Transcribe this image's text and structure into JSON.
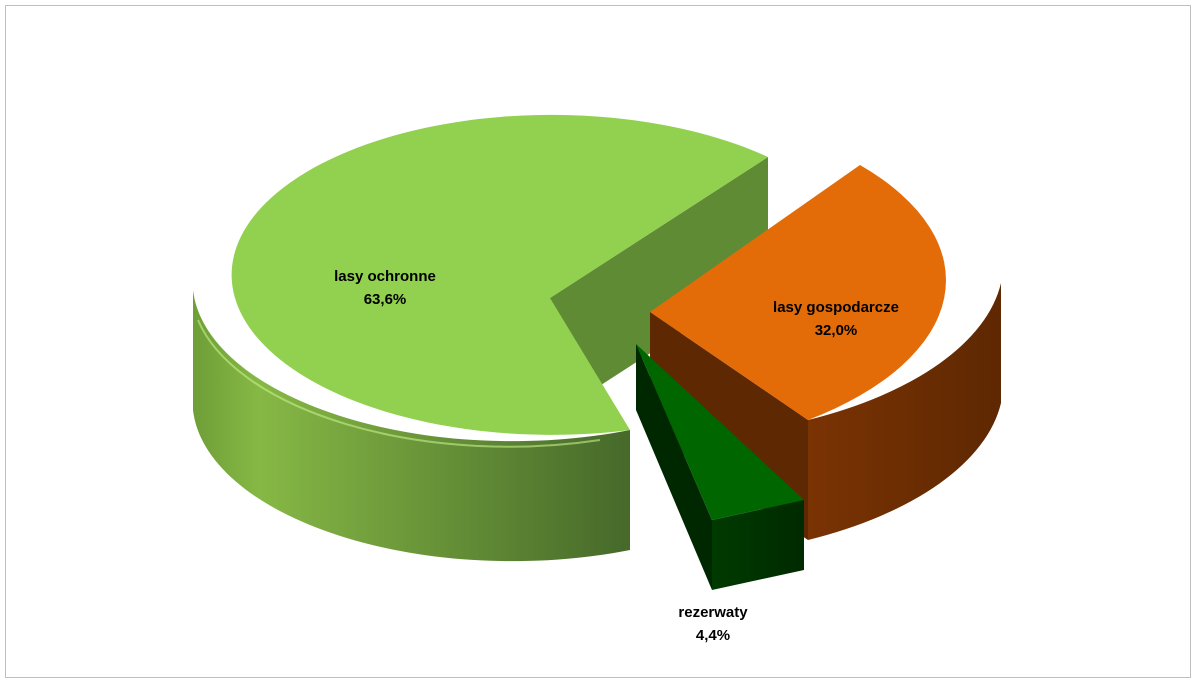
{
  "chart_data": {
    "type": "pie",
    "title": "",
    "slices": [
      {
        "label": "lasy ochronne",
        "value": 63.6,
        "display": "63,6%",
        "color": "#92d050"
      },
      {
        "label": "lasy gospodarcze",
        "value": 32.0,
        "display": "32,0%",
        "color": "#e36c09"
      },
      {
        "label": "rezerwaty",
        "value": 4.4,
        "display": "4,4%",
        "color": "#006600"
      }
    ],
    "style": "3d-exploded",
    "legend": "none",
    "data_labels": "category-name-and-percent"
  }
}
